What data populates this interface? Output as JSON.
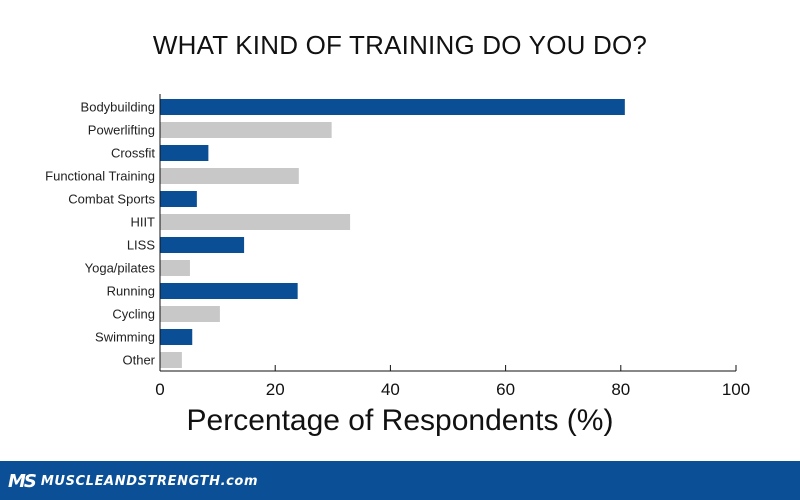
{
  "chart_data": {
    "type": "bar",
    "orientation": "horizontal",
    "title": "WHAT KIND OF TRAINING DO YOU DO?",
    "xlabel": "Percentage of Respondents (%)",
    "ylabel": "",
    "xlim": [
      0,
      100
    ],
    "xticks": [
      "0",
      "20",
      "40",
      "60",
      "80",
      "100"
    ],
    "categories": [
      "Bodybuilding",
      "Powerlifting",
      "Crossfit",
      "Functional Training",
      "Combat Sports",
      "HIIT",
      "LISS",
      "Yoga/pilates",
      "Running",
      "Cycling",
      "Swimming",
      "Other"
    ],
    "values": [
      80.7,
      29.8,
      8.4,
      24.1,
      6.4,
      33.0,
      14.6,
      5.2,
      23.9,
      10.4,
      5.6,
      3.8
    ],
    "bar_colors": [
      "#0a4f96",
      "#c8c8c8"
    ],
    "grid": false
  },
  "footer": {
    "logo_mark": "MS",
    "logo_text": "MUSCLEANDSTRENGTH.com",
    "background": "#0b4f96"
  }
}
